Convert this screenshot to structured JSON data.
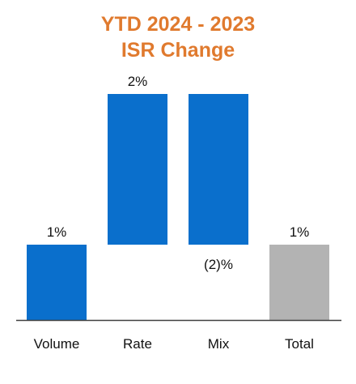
{
  "chart_data": {
    "type": "bar",
    "subtype": "waterfall",
    "title_lines": [
      "YTD 2024 - 2023",
      "ISR Change"
    ],
    "categories": [
      "Volume",
      "Rate",
      "Mix",
      "Total"
    ],
    "values": [
      1,
      2,
      -2,
      1
    ],
    "value_labels": [
      "1%",
      "2%",
      "(2)%",
      "1%"
    ],
    "colors": {
      "title": "#e07a2e",
      "bar": "#0a6fcc",
      "total": "#b3b3b3",
      "axis": "#404040"
    },
    "xlabel": "",
    "ylabel": "",
    "ylim": [
      0,
      3
    ],
    "grid": false,
    "legend": "none"
  }
}
